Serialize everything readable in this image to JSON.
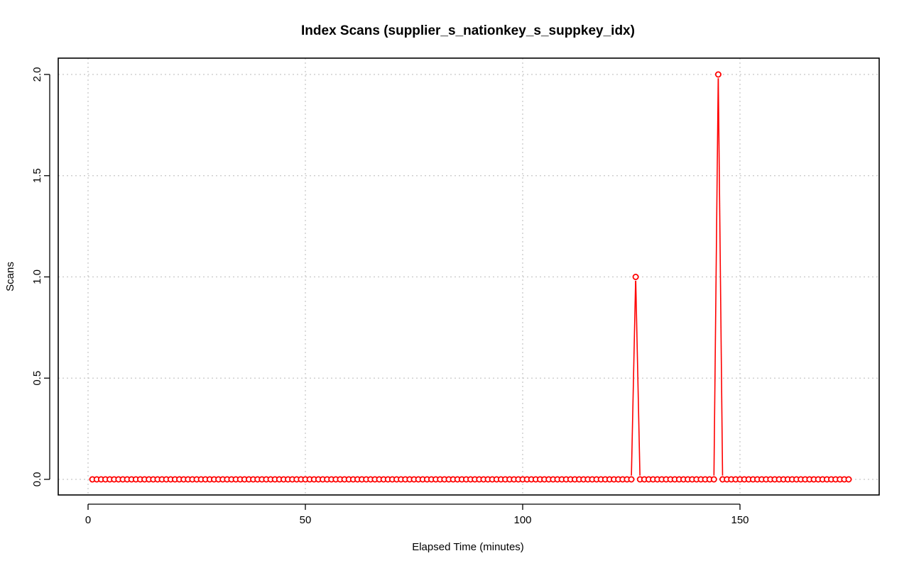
{
  "chart_data": {
    "type": "line",
    "title": "Index Scans (supplier_s_nationkey_s_suppkey_idx)",
    "xlabel": "Elapsed Time (minutes)",
    "ylabel": "Scans",
    "xlim": [
      1,
      175
    ],
    "ylim": [
      0,
      2
    ],
    "x_ticks": [
      0,
      50,
      100,
      150
    ],
    "x_tick_labels": [
      "0",
      "50",
      "100",
      "150"
    ],
    "y_ticks": [
      0,
      0.5,
      1,
      1.5,
      2
    ],
    "y_tick_labels": [
      "0.0",
      "0.5",
      "1.0",
      "1.5",
      "2.0"
    ],
    "grid": true,
    "colors": {
      "series": "#ff0000",
      "grid": "#c8c8c8"
    },
    "series": [
      {
        "marker": "open-circle",
        "x_start": 1,
        "x_step": 1,
        "values": [
          0,
          0,
          0,
          0,
          0,
          0,
          0,
          0,
          0,
          0,
          0,
          0,
          0,
          0,
          0,
          0,
          0,
          0,
          0,
          0,
          0,
          0,
          0,
          0,
          0,
          0,
          0,
          0,
          0,
          0,
          0,
          0,
          0,
          0,
          0,
          0,
          0,
          0,
          0,
          0,
          0,
          0,
          0,
          0,
          0,
          0,
          0,
          0,
          0,
          0,
          0,
          0,
          0,
          0,
          0,
          0,
          0,
          0,
          0,
          0,
          0,
          0,
          0,
          0,
          0,
          0,
          0,
          0,
          0,
          0,
          0,
          0,
          0,
          0,
          0,
          0,
          0,
          0,
          0,
          0,
          0,
          0,
          0,
          0,
          0,
          0,
          0,
          0,
          0,
          0,
          0,
          0,
          0,
          0,
          0,
          0,
          0,
          0,
          0,
          0,
          0,
          0,
          0,
          0,
          0,
          0,
          0,
          0,
          0,
          0,
          0,
          0,
          0,
          0,
          0,
          0,
          0,
          0,
          0,
          0,
          0,
          0,
          0,
          0,
          0,
          1,
          0,
          0,
          0,
          0,
          0,
          0,
          0,
          0,
          0,
          0,
          0,
          0,
          0,
          0,
          0,
          0,
          0,
          0,
          2,
          0,
          0,
          0,
          0,
          0,
          0,
          0,
          0,
          0,
          0,
          0,
          0,
          0,
          0,
          0,
          0,
          0,
          0,
          0,
          0,
          0,
          0,
          0,
          0,
          0,
          0,
          0,
          0,
          0,
          0
        ]
      }
    ]
  }
}
